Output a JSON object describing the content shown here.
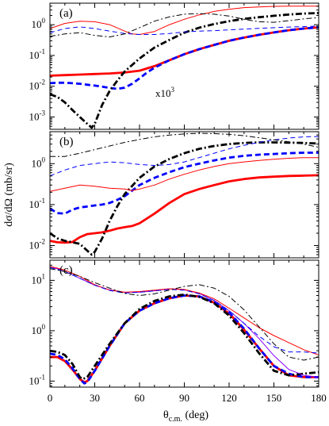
{
  "chart_data": [
    {
      "type": "line",
      "panel_label": "(a)",
      "annotation": "x10",
      "annotation_exp": "3",
      "xlim": [
        0,
        180
      ],
      "ylim_log10": [
        -3.4,
        0.7
      ],
      "x_ticks": [
        "0",
        "30",
        "60",
        "90",
        "120",
        "150",
        "180"
      ],
      "y_ticks": [
        {
          "mantissa": "10",
          "exp": "-3"
        },
        {
          "mantissa": "10",
          "exp": "-2"
        },
        {
          "mantissa": "10",
          "exp": "-1"
        },
        {
          "mantissa": "10",
          "exp": "0"
        }
      ],
      "series": [
        {
          "color": "#ff0000",
          "style": "solid-thick",
          "x": [
            0,
            10,
            20,
            30,
            40,
            50,
            60,
            70,
            80,
            90,
            100,
            110,
            120,
            130,
            140,
            150,
            160,
            170,
            180
          ],
          "y": [
            0.022,
            0.023,
            0.024,
            0.025,
            0.026,
            0.028,
            0.032,
            0.045,
            0.07,
            0.11,
            0.16,
            0.22,
            0.3,
            0.38,
            0.47,
            0.56,
            0.66,
            0.75,
            0.82
          ]
        },
        {
          "color": "#0000ff",
          "style": "dashed-thick",
          "x": [
            0,
            5,
            10,
            15,
            20,
            25,
            30,
            35,
            40,
            45,
            50,
            55,
            60,
            65,
            70,
            80,
            90,
            100,
            110,
            120,
            130,
            140,
            150,
            160,
            170,
            180
          ],
          "y": [
            0.0125,
            0.013,
            0.013,
            0.0125,
            0.012,
            0.0112,
            0.0105,
            0.0097,
            0.0088,
            0.0082,
            0.009,
            0.012,
            0.018,
            0.028,
            0.04,
            0.07,
            0.11,
            0.16,
            0.22,
            0.3,
            0.38,
            0.47,
            0.56,
            0.66,
            0.75,
            0.82
          ]
        },
        {
          "color": "#000000",
          "style": "dashdot-thick",
          "x": [
            0,
            5,
            10,
            15,
            20,
            25,
            28,
            30,
            35,
            40,
            45,
            50,
            60,
            70,
            80,
            90,
            100,
            110,
            120,
            130,
            140,
            150,
            160,
            170,
            180
          ],
          "y": [
            0.0055,
            0.0045,
            0.003,
            0.0017,
            0.001,
            0.0006,
            0.00045,
            0.0006,
            0.0025,
            0.007,
            0.015,
            0.03,
            0.08,
            0.18,
            0.32,
            0.55,
            0.8,
            1.05,
            1.3,
            1.55,
            1.75,
            1.95,
            2.15,
            2.3,
            2.4
          ]
        },
        {
          "color": "#ff0000",
          "style": "solid-thin",
          "x": [
            0,
            10,
            20,
            30,
            40,
            50,
            55,
            60,
            70,
            80,
            90,
            100,
            110,
            120,
            130,
            140,
            150,
            160,
            170,
            180
          ],
          "y": [
            0.75,
            1.1,
            1.3,
            1.25,
            1.0,
            0.62,
            0.5,
            0.48,
            0.6,
            1.0,
            1.5,
            2.1,
            2.7,
            3.2,
            3.6,
            3.8,
            3.95,
            4.0,
            4.0,
            4.0
          ]
        },
        {
          "color": "#0000ff",
          "style": "dashed-thin",
          "x": [
            0,
            10,
            20,
            30,
            40,
            50,
            60,
            70,
            80,
            90,
            100,
            110,
            120,
            130,
            140,
            150,
            160,
            170,
            180
          ],
          "y": [
            0.55,
            0.75,
            0.85,
            0.75,
            0.62,
            0.52,
            0.48,
            0.48,
            0.52,
            0.58,
            0.62,
            0.64,
            0.68,
            0.72,
            0.76,
            0.8,
            0.84,
            0.87,
            0.9
          ]
        },
        {
          "color": "#000000",
          "style": "dashdot-thin",
          "x": [
            0,
            10,
            20,
            30,
            40,
            50,
            60,
            70,
            80,
            90,
            100,
            110,
            120,
            130,
            140,
            150,
            160,
            170,
            180
          ],
          "y": [
            0.42,
            0.5,
            0.55,
            0.45,
            0.4,
            0.5,
            0.8,
            1.3,
            1.8,
            2.2,
            2.3,
            2.2,
            1.9,
            1.5,
            1.25,
            1.2,
            1.35,
            1.55,
            1.7
          ]
        }
      ]
    },
    {
      "type": "line",
      "panel_label": "(b)",
      "ylabel": "dσ/dΩ (mb/sr)",
      "xlim": [
        0,
        180
      ],
      "ylim_log10": [
        -2.3,
        0.78
      ],
      "x_ticks": [
        "0",
        "30",
        "60",
        "90",
        "120",
        "150",
        "180"
      ],
      "y_ticks": [
        {
          "mantissa": "10",
          "exp": "-2"
        },
        {
          "mantissa": "10",
          "exp": "-1"
        },
        {
          "mantissa": "10",
          "exp": "0"
        }
      ],
      "series": [
        {
          "color": "#ff0000",
          "style": "solid-thick",
          "x": [
            0,
            5,
            10,
            15,
            20,
            25,
            30,
            35,
            40,
            45,
            50,
            55,
            60,
            70,
            80,
            90,
            100,
            110,
            120,
            130,
            140,
            150,
            160,
            170,
            180
          ],
          "y": [
            0.013,
            0.012,
            0.0118,
            0.0122,
            0.016,
            0.019,
            0.02,
            0.021,
            0.023,
            0.026,
            0.028,
            0.03,
            0.035,
            0.06,
            0.11,
            0.18,
            0.24,
            0.3,
            0.37,
            0.42,
            0.46,
            0.48,
            0.5,
            0.51,
            0.52
          ]
        },
        {
          "color": "#0000ff",
          "style": "dashed-thick",
          "x": [
            0,
            5,
            10,
            15,
            20,
            25,
            30,
            35,
            40,
            45,
            50,
            60,
            70,
            80,
            90,
            100,
            110,
            120,
            130,
            140,
            150,
            160,
            170,
            180
          ],
          "y": [
            0.08,
            0.062,
            0.06,
            0.075,
            0.085,
            0.09,
            0.095,
            0.1,
            0.11,
            0.13,
            0.16,
            0.3,
            0.45,
            0.62,
            0.82,
            1.0,
            1.2,
            1.4,
            1.55,
            1.65,
            1.72,
            1.8,
            1.85,
            1.85
          ]
        },
        {
          "color": "#000000",
          "style": "dashdot-thick",
          "x": [
            0,
            5,
            10,
            15,
            20,
            25,
            28,
            30,
            35,
            40,
            45,
            50,
            60,
            70,
            80,
            90,
            100,
            110,
            120,
            130,
            140,
            150,
            160,
            170,
            180
          ],
          "y": [
            0.02,
            0.015,
            0.013,
            0.012,
            0.011,
            0.0075,
            0.006,
            0.007,
            0.015,
            0.04,
            0.09,
            0.18,
            0.45,
            0.85,
            1.3,
            1.8,
            2.3,
            2.7,
            3.0,
            3.2,
            3.3,
            3.3,
            3.25,
            3.2,
            3.1
          ]
        },
        {
          "color": "#ff0000",
          "style": "solid-thin",
          "x": [
            0,
            10,
            20,
            30,
            40,
            50,
            55,
            60,
            70,
            80,
            90,
            100,
            110,
            120,
            130,
            140,
            150,
            160,
            170,
            180
          ],
          "y": [
            0.21,
            0.25,
            0.3,
            0.28,
            0.25,
            0.24,
            0.22,
            0.24,
            0.3,
            0.42,
            0.55,
            0.7,
            0.85,
            1.0,
            1.1,
            1.2,
            1.28,
            1.35,
            1.4,
            1.4
          ]
        },
        {
          "color": "#0000ff",
          "style": "dashed-thin",
          "x": [
            0,
            10,
            20,
            30,
            40,
            50,
            60,
            70,
            80,
            90,
            100,
            110,
            120,
            130,
            140,
            150,
            160,
            170,
            180
          ],
          "y": [
            0.5,
            0.7,
            0.9,
            1.0,
            1.1,
            1.05,
            0.95,
            0.9,
            0.95,
            1.1,
            1.4,
            1.8,
            2.3,
            2.8,
            3.3,
            3.8,
            4.2,
            4.5,
            4.6
          ]
        },
        {
          "color": "#000000",
          "style": "dashdot-thin",
          "x": [
            0,
            10,
            20,
            30,
            40,
            50,
            60,
            70,
            80,
            90,
            100,
            110,
            120,
            130,
            140,
            150,
            160,
            170,
            180
          ],
          "y": [
            1.5,
            1.5,
            1.8,
            2.2,
            2.7,
            3.3,
            3.9,
            4.5,
            5.0,
            5.3,
            5.5,
            5.4,
            5.2,
            4.8,
            4.3,
            3.8,
            3.4,
            3.0,
            2.5
          ]
        }
      ]
    },
    {
      "type": "line",
      "panel_label": "(c)",
      "xlabel_main": "θ",
      "xlabel_sub": "c.m.",
      "xlabel_unit": " (deg)",
      "xlim": [
        0,
        180
      ],
      "ylim_log10": [
        -1.12,
        1.4
      ],
      "x_ticks": [
        "0",
        "30",
        "60",
        "90",
        "120",
        "150",
        "180"
      ],
      "y_ticks": [
        {
          "mantissa": "10",
          "exp": "-1"
        },
        {
          "mantissa": "10",
          "exp": "0"
        },
        {
          "mantissa": "10",
          "exp": "1"
        }
      ],
      "series": [
        {
          "color": "#ff0000",
          "style": "solid-thick",
          "x": [
            0,
            5,
            10,
            15,
            20,
            23,
            25,
            30,
            40,
            50,
            60,
            70,
            80,
            90,
            100,
            110,
            120,
            130,
            140,
            150,
            160,
            170,
            180
          ],
          "y": [
            0.3,
            0.3,
            0.25,
            0.17,
            0.11,
            0.095,
            0.1,
            0.16,
            0.5,
            1.4,
            2.5,
            3.5,
            4.4,
            5.0,
            4.8,
            3.6,
            2.2,
            1.05,
            0.45,
            0.2,
            0.13,
            0.12,
            0.12
          ]
        },
        {
          "color": "#0000ff",
          "style": "dashed-thick",
          "x": [
            0,
            5,
            10,
            15,
            20,
            23,
            25,
            30,
            40,
            50,
            60,
            70,
            80,
            90,
            100,
            110,
            120,
            130,
            140,
            150,
            160,
            170,
            180
          ],
          "y": [
            0.35,
            0.33,
            0.27,
            0.18,
            0.11,
            0.09,
            0.095,
            0.16,
            0.5,
            1.4,
            2.5,
            3.5,
            4.4,
            5.0,
            4.8,
            3.7,
            2.3,
            1.1,
            0.45,
            0.2,
            0.14,
            0.12,
            0.12
          ]
        },
        {
          "color": "#000000",
          "style": "dashdot-thick",
          "x": [
            0,
            5,
            10,
            15,
            20,
            22,
            25,
            30,
            40,
            50,
            60,
            70,
            80,
            90,
            100,
            110,
            120,
            130,
            140,
            150,
            160,
            170,
            180
          ],
          "y": [
            0.4,
            0.38,
            0.33,
            0.22,
            0.12,
            0.11,
            0.12,
            0.2,
            0.55,
            1.4,
            2.7,
            3.9,
            4.8,
            5.2,
            4.7,
            3.5,
            2.0,
            0.9,
            0.36,
            0.16,
            0.13,
            0.14,
            0.15
          ]
        },
        {
          "color": "#8800ff",
          "style": "solid-thin",
          "x": [
            0,
            5,
            10,
            20,
            30,
            40,
            50,
            60,
            70,
            80,
            90,
            100,
            110,
            120,
            130,
            140,
            150,
            160,
            170,
            180
          ],
          "y": [
            18,
            17,
            15,
            11,
            8.0,
            6.5,
            5.8,
            5.8,
            6.2,
            6.8,
            6.5,
            5.5,
            4.0,
            2.5,
            1.4,
            0.7,
            0.32,
            0.17,
            0.13,
            0.12
          ]
        },
        {
          "color": "#ff0000",
          "style": "solid-thin",
          "x": [
            0,
            10,
            20,
            30,
            40,
            50,
            60,
            70,
            80,
            90,
            100,
            110,
            120,
            130,
            140,
            150,
            160,
            170,
            180
          ],
          "y": [
            19,
            16,
            12,
            8.2,
            6.4,
            5.8,
            6.0,
            6.4,
            6.8,
            6.6,
            5.6,
            4.3,
            2.8,
            1.8,
            1.15,
            0.8,
            0.58,
            0.42,
            0.33
          ]
        },
        {
          "color": "#0000ff",
          "style": "dashed-thin",
          "x": [
            0,
            10,
            20,
            30,
            40,
            50,
            60,
            70,
            80,
            90,
            100,
            110,
            120,
            130,
            140,
            150,
            160,
            170,
            180
          ],
          "y": [
            18,
            15,
            11,
            8.0,
            6.3,
            5.6,
            5.8,
            6.2,
            6.6,
            6.4,
            5.4,
            4.0,
            2.5,
            1.4,
            0.78,
            0.48,
            0.38,
            0.38,
            0.36
          ]
        },
        {
          "color": "#000000",
          "style": "dashdot-thin",
          "x": [
            0,
            10,
            20,
            30,
            40,
            50,
            60,
            70,
            80,
            90,
            100,
            110,
            120,
            130,
            140,
            150,
            160,
            170,
            180
          ],
          "y": [
            17,
            15,
            12,
            9.0,
            7.0,
            5.5,
            5.0,
            5.4,
            6.4,
            7.6,
            8.2,
            7.0,
            4.8,
            2.6,
            1.2,
            0.55,
            0.3,
            0.26,
            0.3
          ]
        }
      ]
    }
  ]
}
